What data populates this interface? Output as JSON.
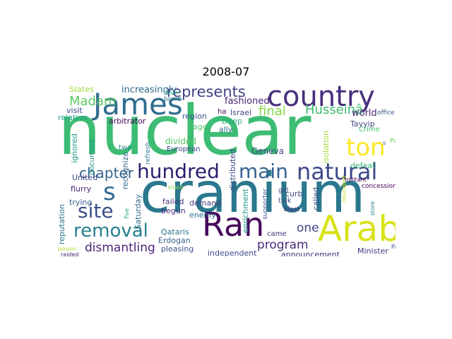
{
  "title": "2008-07",
  "words": [
    {
      "text": "nuclear",
      "color": "#3dbc74"
    },
    {
      "text": "cranium",
      "color": "#2a788e"
    },
    {
      "text": "country",
      "color": "#472f7d"
    },
    {
      "text": "James",
      "color": "#2f6c8e"
    },
    {
      "text": "Arab",
      "color": "#d8e219"
    },
    {
      "text": "Ran",
      "color": "#46085c"
    },
    {
      "text": "main",
      "color": "#34618d"
    },
    {
      "text": "natural",
      "color": "#3e4a89"
    },
    {
      "text": "hundred",
      "color": "#2d1e6e"
    },
    {
      "text": "removal",
      "color": "#277f8e"
    },
    {
      "text": "site",
      "color": "#3d4e8a"
    },
    {
      "text": "s",
      "color": "#31688e"
    },
    {
      "text": "ton",
      "color": "#fde725"
    },
    {
      "text": "represents",
      "color": "#404387"
    },
    {
      "text": "chapter",
      "color": "#33638d"
    },
    {
      "text": "Husseinâ",
      "color": "#3fbc73"
    },
    {
      "text": "final",
      "color": "#86d549"
    },
    {
      "text": "Madam",
      "color": "#5ec962"
    },
    {
      "text": "dismantling",
      "color": "#482677"
    },
    {
      "text": "program",
      "color": "#472c7a"
    },
    {
      "text": "one",
      "color": "#414487"
    },
    {
      "text": "increasingly",
      "color": "#306a8e"
    },
    {
      "text": "fashioned",
      "color": "#482878"
    },
    {
      "text": "States",
      "color": "#9bd93c"
    },
    {
      "text": "visit",
      "color": "#414487"
    },
    {
      "text": "relation",
      "color": "#1f9e89"
    },
    {
      "text": "arbitrator",
      "color": "#440154"
    },
    {
      "text": "region",
      "color": "#3b528b"
    },
    {
      "text": "bomb",
      "color": "#2a788e"
    },
    {
      "text": "ha",
      "color": "#440154"
    },
    {
      "text": "Israel",
      "color": "#3e4989"
    },
    {
      "text": "ally",
      "color": "#2c728e"
    },
    {
      "text": "Deep",
      "color": "#26ad81"
    },
    {
      "text": "page",
      "color": "#52c569"
    },
    {
      "text": "office",
      "color": "#3b528b"
    },
    {
      "text": "Tayyip",
      "color": "#3e4989"
    },
    {
      "text": "Crime",
      "color": "#4ac16d"
    },
    {
      "text": "world",
      "color": "#482878"
    },
    {
      "text": "defeat",
      "color": "#35b779"
    },
    {
      "text": "concession",
      "color": "#440154"
    },
    {
      "text": "Path",
      "color": "#6ece58"
    },
    {
      "text": "girl",
      "color": "#414487"
    },
    {
      "text": "talk",
      "color": "#3b528b"
    },
    {
      "text": "curb",
      "color": "#3e4989"
    },
    {
      "text": "blast",
      "color": "#46337f"
    },
    {
      "text": "Geneva",
      "color": "#404688"
    },
    {
      "text": "divided",
      "color": "#55c667"
    },
    {
      "text": "European",
      "color": "#3e4989"
    },
    {
      "text": "United",
      "color": "#3e4a89"
    },
    {
      "text": "trying",
      "color": "#375b8d"
    },
    {
      "text": "flurry",
      "color": "#481f70"
    },
    {
      "text": "two",
      "color": "#26828e"
    },
    {
      "text": "failed",
      "color": "#463480"
    },
    {
      "text": "begun",
      "color": "#472d7b"
    },
    {
      "text": "killed",
      "color": "#8fd744"
    },
    {
      "text": "demand",
      "color": "#443a83"
    },
    {
      "text": "enemy",
      "color": "#2e6e8e"
    },
    {
      "text": "Saturday",
      "color": "#31688e"
    },
    {
      "text": "Qataris",
      "color": "#2c728e"
    },
    {
      "text": "Erdogan",
      "color": "#355f8d"
    },
    {
      "text": "pleasing",
      "color": "#3b528b"
    },
    {
      "text": "independent",
      "color": "#3f4889"
    },
    {
      "text": "came",
      "color": "#472c7a"
    },
    {
      "text": "announcement",
      "color": "#46337f"
    },
    {
      "text": "Minister",
      "color": "#443983"
    },
    {
      "text": "Papa",
      "color": "#3e4a89"
    },
    {
      "text": "side",
      "color": "#440154"
    },
    {
      "text": "poison",
      "color": "#b5de2b"
    },
    {
      "text": "raided",
      "color": "#482475"
    },
    {
      "text": "reputation",
      "color": "#2a788e"
    },
    {
      "text": "ignored",
      "color": "#1f9a8a"
    },
    {
      "text": "document",
      "color": "#21918c"
    },
    {
      "text": "recognize",
      "color": "#31688e"
    },
    {
      "text": "refresh",
      "color": "#2c728e"
    },
    {
      "text": "five",
      "color": "#1fa188"
    },
    {
      "text": "officer",
      "color": "#29af7f"
    },
    {
      "text": "distributed",
      "color": "#3e4989"
    },
    {
      "text": "enrichment",
      "color": "#1f988b"
    },
    {
      "text": "supporter",
      "color": "#3a548c"
    },
    {
      "text": "called",
      "color": "#3b528b"
    },
    {
      "text": "isolation",
      "color": "#a5db36"
    },
    {
      "text": "rounded",
      "color": "#c2df23"
    },
    {
      "text": "militant",
      "color": "#440154"
    },
    {
      "text": "store",
      "color": "#26828e"
    },
    {
      "text": "s",
      "color": "#414487"
    }
  ]
}
